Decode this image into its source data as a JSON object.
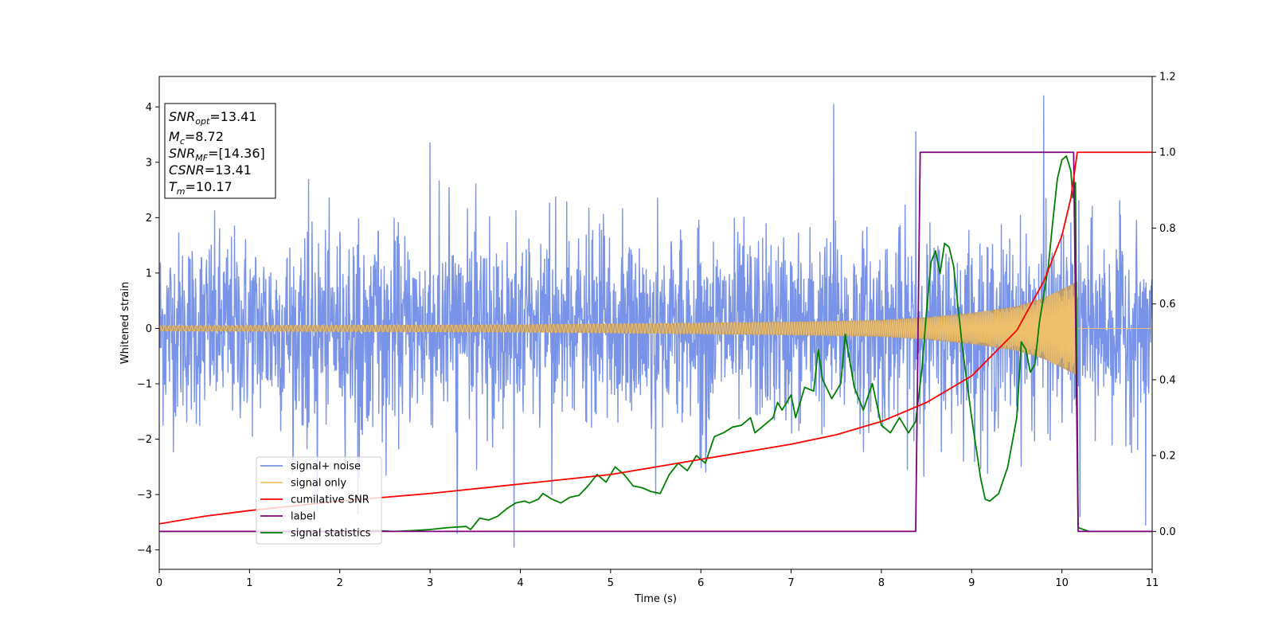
{
  "chart_data": {
    "type": "line",
    "title": "",
    "xlabel": "Time (s)",
    "ylabel": "Whitened strain",
    "xlim": [
      0,
      11
    ],
    "ylim_left": [
      -4.35,
      4.55
    ],
    "ylim_right": [
      -0.1,
      1.2
    ],
    "x_ticks": [
      0,
      1,
      2,
      3,
      4,
      5,
      6,
      7,
      8,
      9,
      10,
      11
    ],
    "y_left_ticks": [
      -4,
      -3,
      -2,
      -1,
      0,
      1,
      2,
      3,
      4
    ],
    "y_right_ticks": [
      0.0,
      0.2,
      0.4,
      0.6,
      0.8,
      1.0,
      1.2
    ],
    "grid": false,
    "legend_position": "lower-left",
    "colors": {
      "signal_noise": "#7893e8",
      "signal_only": "#f5c469",
      "cumulative_snr": "#ff0000",
      "label": "#800080",
      "signal_statistics": "#008000",
      "overlap": "#b89b73"
    },
    "series": [
      {
        "name": "signal+ noise",
        "axis": "left",
        "kind": "noise",
        "noise_std": 0.85,
        "spike_points": [
          [
            3.0,
            3.35
          ],
          [
            3.3,
            -3.7
          ],
          [
            3.93,
            -3.95
          ],
          [
            7.47,
            4.05
          ],
          [
            8.38,
            3.55
          ],
          [
            9.8,
            4.2
          ],
          [
            10.2,
            -3.4
          ],
          [
            10.93,
            -3.55
          ],
          [
            1.75,
            -3.3
          ],
          [
            2.2,
            -3.35
          ],
          [
            4.35,
            -3.0
          ],
          [
            5.5,
            -3.0
          ]
        ]
      },
      {
        "name": "signal only",
        "axis": "left",
        "kind": "chirp",
        "envelope": [
          [
            0,
            0.05
          ],
          [
            2,
            0.06
          ],
          [
            4,
            0.07
          ],
          [
            6,
            0.1
          ],
          [
            7,
            0.12
          ],
          [
            8,
            0.15
          ],
          [
            8.5,
            0.2
          ],
          [
            9,
            0.28
          ],
          [
            9.5,
            0.4
          ],
          [
            9.8,
            0.55
          ],
          [
            10.05,
            0.75
          ],
          [
            10.17,
            0.85
          ],
          [
            10.18,
            0.0
          ],
          [
            11,
            0.0
          ]
        ]
      },
      {
        "name": "cumilative SNR",
        "axis": "right",
        "points": [
          [
            0,
            0.02
          ],
          [
            0.5,
            0.04
          ],
          [
            1,
            0.055
          ],
          [
            2,
            0.08
          ],
          [
            3,
            0.1
          ],
          [
            4,
            0.125
          ],
          [
            5,
            0.15
          ],
          [
            6,
            0.19
          ],
          [
            7,
            0.23
          ],
          [
            7.5,
            0.255
          ],
          [
            8,
            0.29
          ],
          [
            8.5,
            0.34
          ],
          [
            9,
            0.41
          ],
          [
            9.5,
            0.53
          ],
          [
            9.8,
            0.66
          ],
          [
            10.0,
            0.78
          ],
          [
            10.1,
            0.88
          ],
          [
            10.17,
            1.0
          ],
          [
            11,
            1.0
          ]
        ]
      },
      {
        "name": "label",
        "axis": "right",
        "points": [
          [
            0,
            0.0
          ],
          [
            8.38,
            0.0
          ],
          [
            8.43,
            1.0
          ],
          [
            10.13,
            1.0
          ],
          [
            10.18,
            0.0
          ],
          [
            11,
            0.0
          ]
        ]
      },
      {
        "name": "signal statistics",
        "axis": "right",
        "points": [
          [
            0,
            0.0
          ],
          [
            1,
            0.0
          ],
          [
            2,
            0.0
          ],
          [
            2.4,
            0.002
          ],
          [
            2.6,
            0.0
          ],
          [
            2.8,
            0.002
          ],
          [
            3.0,
            0.005
          ],
          [
            3.2,
            0.01
          ],
          [
            3.4,
            0.013
          ],
          [
            3.45,
            0.005
          ],
          [
            3.55,
            0.035
          ],
          [
            3.65,
            0.03
          ],
          [
            3.75,
            0.04
          ],
          [
            3.85,
            0.06
          ],
          [
            3.95,
            0.075
          ],
          [
            4.05,
            0.08
          ],
          [
            4.1,
            0.075
          ],
          [
            4.2,
            0.085
          ],
          [
            4.25,
            0.1
          ],
          [
            4.35,
            0.085
          ],
          [
            4.45,
            0.075
          ],
          [
            4.55,
            0.09
          ],
          [
            4.65,
            0.095
          ],
          [
            4.75,
            0.12
          ],
          [
            4.85,
            0.15
          ],
          [
            4.95,
            0.13
          ],
          [
            5.05,
            0.17
          ],
          [
            5.15,
            0.15
          ],
          [
            5.25,
            0.12
          ],
          [
            5.35,
            0.115
          ],
          [
            5.45,
            0.105
          ],
          [
            5.55,
            0.1
          ],
          [
            5.65,
            0.15
          ],
          [
            5.75,
            0.18
          ],
          [
            5.85,
            0.16
          ],
          [
            5.95,
            0.2
          ],
          [
            6.05,
            0.18
          ],
          [
            6.15,
            0.25
          ],
          [
            6.25,
            0.26
          ],
          [
            6.35,
            0.275
          ],
          [
            6.45,
            0.28
          ],
          [
            6.55,
            0.3
          ],
          [
            6.6,
            0.26
          ],
          [
            6.7,
            0.28
          ],
          [
            6.8,
            0.3
          ],
          [
            6.85,
            0.34
          ],
          [
            6.9,
            0.32
          ],
          [
            6.95,
            0.34
          ],
          [
            7.0,
            0.36
          ],
          [
            7.05,
            0.3
          ],
          [
            7.15,
            0.38
          ],
          [
            7.25,
            0.37
          ],
          [
            7.3,
            0.48
          ],
          [
            7.35,
            0.4
          ],
          [
            7.45,
            0.35
          ],
          [
            7.55,
            0.39
          ],
          [
            7.6,
            0.52
          ],
          [
            7.7,
            0.38
          ],
          [
            7.8,
            0.32
          ],
          [
            7.9,
            0.39
          ],
          [
            8.0,
            0.28
          ],
          [
            8.1,
            0.26
          ],
          [
            8.2,
            0.3
          ],
          [
            8.3,
            0.26
          ],
          [
            8.38,
            0.29
          ],
          [
            8.45,
            0.43
          ],
          [
            8.5,
            0.58
          ],
          [
            8.55,
            0.71
          ],
          [
            8.6,
            0.74
          ],
          [
            8.65,
            0.68
          ],
          [
            8.7,
            0.76
          ],
          [
            8.75,
            0.75
          ],
          [
            8.8,
            0.7
          ],
          [
            8.9,
            0.48
          ],
          [
            9.0,
            0.3
          ],
          [
            9.1,
            0.14
          ],
          [
            9.15,
            0.085
          ],
          [
            9.2,
            0.08
          ],
          [
            9.3,
            0.1
          ],
          [
            9.4,
            0.17
          ],
          [
            9.5,
            0.3
          ],
          [
            9.55,
            0.5
          ],
          [
            9.6,
            0.48
          ],
          [
            9.65,
            0.42
          ],
          [
            9.7,
            0.44
          ],
          [
            9.75,
            0.55
          ],
          [
            9.85,
            0.7
          ],
          [
            9.9,
            0.82
          ],
          [
            9.95,
            0.93
          ],
          [
            10.0,
            0.98
          ],
          [
            10.05,
            0.99
          ],
          [
            10.1,
            0.95
          ],
          [
            10.12,
            0.88
          ],
          [
            10.15,
            0.92
          ],
          [
            10.18,
            0.01
          ],
          [
            10.3,
            0.0
          ],
          [
            11,
            0.0
          ]
        ]
      }
    ],
    "annotation": {
      "lines": [
        {
          "base": "SNR",
          "sub": "opt",
          "value": "=13.41"
        },
        {
          "base": "M",
          "sub": "c",
          "value": "=8.72"
        },
        {
          "base": "SNR",
          "sub": "MF",
          "value": "=[14.36]"
        },
        {
          "base": "CSNR",
          "sub": "",
          "value": "=13.41"
        },
        {
          "base": "T",
          "sub": "m",
          "value": "=10.17"
        }
      ]
    }
  }
}
